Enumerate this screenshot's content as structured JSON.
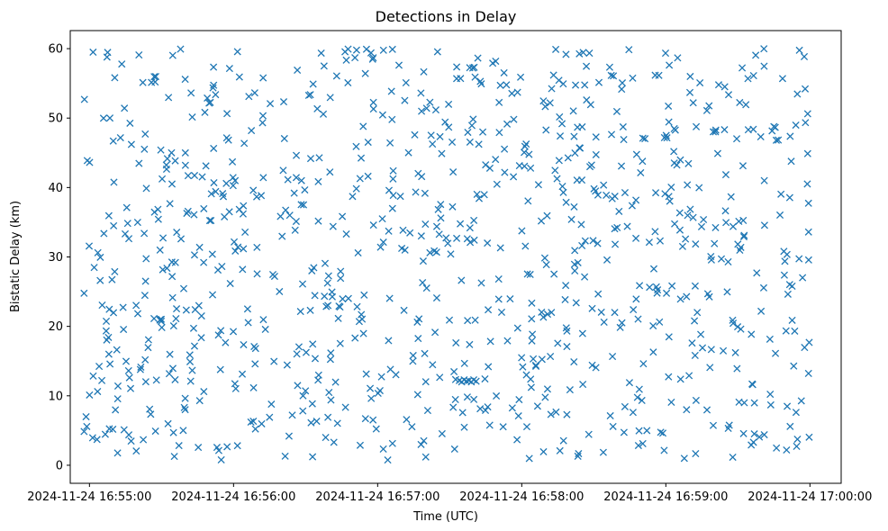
{
  "chart_data": {
    "type": "scatter",
    "title": "Detections in Delay",
    "xlabel": "Time (UTC)",
    "ylabel": "Bistatic Delay (km)",
    "marker": "x",
    "color": "#1f77b4",
    "xlim": [
      "2024-11-24 16:54:52",
      "2024-11-24 17:00:13"
    ],
    "ylim": [
      -2.6,
      62.6
    ],
    "xticks": [
      "2024-11-24 16:55:00",
      "2024-11-24 16:56:00",
      "2024-11-24 16:57:00",
      "2024-11-24 16:58:00",
      "2024-11-24 16:59:00",
      "2024-11-24 17:00:00"
    ],
    "yticks": [
      0,
      10,
      20,
      30,
      40,
      50,
      60
    ],
    "grid": false,
    "cluster_points": [
      {
        "x": "2024-11-24 16:57:34",
        "y": 12.2
      },
      {
        "x": "2024-11-24 16:57:35",
        "y": 12.0
      },
      {
        "x": "2024-11-24 16:57:36",
        "y": 12.3
      },
      {
        "x": "2024-11-24 16:57:37",
        "y": 12.1
      },
      {
        "x": "2024-11-24 16:57:38",
        "y": 12.2
      },
      {
        "x": "2024-11-24 16:57:39",
        "y": 12.0
      },
      {
        "x": "2024-11-24 16:57:40",
        "y": 12.3
      },
      {
        "x": "2024-11-24 16:57:41",
        "y": 12.1
      }
    ],
    "scatter_points_note_free": true
  }
}
